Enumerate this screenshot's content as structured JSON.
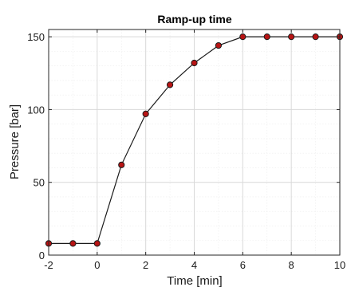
{
  "chart_data": {
    "type": "line",
    "title": "Ramp-up time",
    "xlabel": "Time [min]",
    "ylabel": "Pressure [bar]",
    "xlim": [
      -2,
      10
    ],
    "ylim": [
      0,
      155
    ],
    "xticks": [
      -2,
      0,
      2,
      4,
      6,
      8,
      10
    ],
    "yticks": [
      0,
      50,
      100,
      150
    ],
    "x_minor_step": 1,
    "y_minor_step": 10,
    "grid": true,
    "series": [
      {
        "x": [
          -2,
          -1,
          0,
          1,
          2,
          3,
          4,
          5,
          6,
          7,
          8,
          9,
          10
        ],
        "y": [
          8,
          8,
          8,
          62,
          97,
          117,
          132,
          144,
          150,
          150,
          150,
          150,
          150
        ],
        "color": "#b81414",
        "line_color": "#1a1a1a",
        "marker": "circle"
      }
    ]
  }
}
